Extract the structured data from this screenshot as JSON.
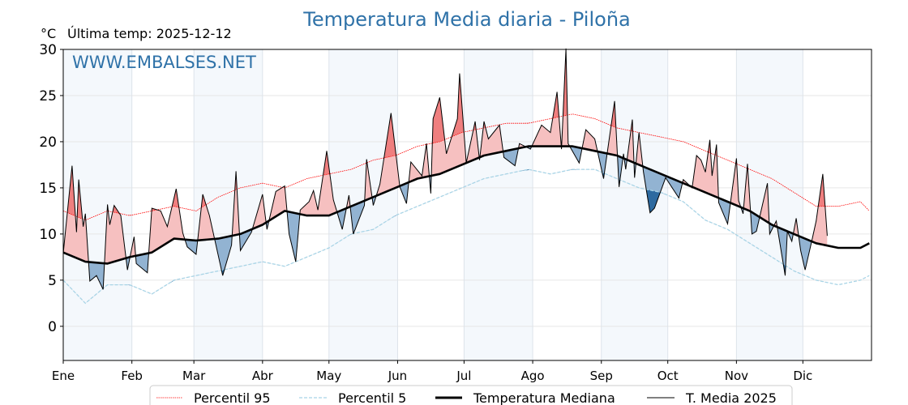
{
  "chart_data": {
    "type": "line",
    "title": "Temperatura Media diaria - Piloña",
    "ylabel": "°C",
    "subtitle": "Última temp: 2025-12-12",
    "watermark": "WWW.EMBALSES.NET",
    "ylim": [
      -3.7,
      30
    ],
    "xlim": [
      0,
      365
    ],
    "yticks": [
      0,
      5,
      10,
      15,
      20,
      25,
      30
    ],
    "month_labels": [
      "Ene",
      "Feb",
      "Mar",
      "Abr",
      "May",
      "Jun",
      "Jul",
      "Ago",
      "Sep",
      "Oct",
      "Nov",
      "Dic"
    ],
    "month_start_days": [
      0,
      31,
      59,
      90,
      120,
      151,
      181,
      212,
      243,
      273,
      304,
      334
    ],
    "grid": true,
    "legend_position": "bottom-center",
    "colors": {
      "title": "#2f72a8",
      "p95": "#ff0000",
      "p5": "#a8d4e6",
      "median": "#000000",
      "year": "#000000",
      "above_fill": "#f6c0c0",
      "above_p95_fill": "#ef7f7f",
      "below_fill": "#92b3d2",
      "below_p5_fill": "#2d6aa0",
      "month_shade": "#f4f8fc"
    },
    "series": [
      {
        "name": "Percentil 95",
        "style": "dotted",
        "x": [
          0,
          10,
          20,
          30,
          40,
          50,
          60,
          70,
          80,
          90,
          100,
          110,
          120,
          130,
          140,
          150,
          160,
          170,
          180,
          190,
          200,
          210,
          220,
          230,
          240,
          250,
          260,
          270,
          280,
          290,
          300,
          310,
          320,
          330,
          340,
          350,
          360,
          364
        ],
        "y": [
          12.5,
          11.5,
          12.5,
          12.0,
          12.5,
          13.0,
          12.5,
          14.0,
          15.0,
          15.5,
          15.0,
          16.0,
          16.5,
          17.0,
          18.0,
          18.5,
          19.5,
          20.0,
          21.0,
          21.5,
          22.0,
          22.0,
          22.5,
          23.0,
          22.5,
          21.5,
          21.0,
          20.5,
          20.0,
          19.0,
          18.0,
          17.0,
          16.0,
          14.5,
          13.0,
          13.0,
          13.5,
          12.5
        ]
      },
      {
        "name": "Percentil 5",
        "style": "dashed",
        "x": [
          0,
          10,
          20,
          30,
          40,
          50,
          60,
          70,
          80,
          90,
          100,
          110,
          120,
          130,
          140,
          150,
          160,
          170,
          180,
          190,
          200,
          210,
          220,
          230,
          240,
          250,
          260,
          270,
          280,
          290,
          300,
          310,
          320,
          330,
          340,
          350,
          360,
          364
        ],
        "y": [
          5.0,
          2.5,
          4.5,
          4.5,
          3.5,
          5.0,
          5.5,
          6.0,
          6.5,
          7.0,
          6.5,
          7.5,
          8.5,
          10.0,
          10.5,
          12.0,
          13.0,
          14.0,
          15.0,
          16.0,
          16.5,
          17.0,
          16.5,
          17.0,
          17.0,
          16.0,
          15.0,
          14.5,
          13.5,
          11.5,
          10.5,
          9.0,
          7.5,
          6.0,
          5.0,
          4.5,
          5.0,
          5.5
        ]
      },
      {
        "name": "Temperatura Mediana",
        "style": "thick",
        "x": [
          0,
          10,
          20,
          30,
          40,
          50,
          60,
          70,
          80,
          90,
          100,
          110,
          120,
          130,
          140,
          150,
          160,
          170,
          180,
          190,
          200,
          210,
          220,
          230,
          240,
          250,
          260,
          270,
          280,
          290,
          300,
          310,
          320,
          330,
          340,
          350,
          360,
          364
        ],
        "y": [
          8.0,
          7.0,
          6.8,
          7.5,
          8.0,
          9.5,
          9.3,
          9.5,
          10.0,
          11.0,
          12.5,
          12.0,
          12.0,
          13.0,
          14.0,
          15.0,
          16.0,
          16.5,
          17.5,
          18.5,
          19.0,
          19.5,
          19.5,
          19.5,
          19.0,
          18.5,
          17.5,
          16.5,
          15.5,
          14.5,
          13.5,
          12.5,
          11.0,
          10.0,
          9.0,
          8.5,
          8.5,
          9.0
        ]
      },
      {
        "name": "T. Media 2025",
        "style": "thin",
        "x": [
          0,
          4,
          6,
          7,
          9,
          10,
          12,
          15,
          18,
          20,
          21,
          23,
          26,
          29,
          32,
          33,
          38,
          40,
          44,
          47,
          51,
          54,
          56,
          60,
          63,
          66,
          72,
          76,
          78,
          80,
          85,
          90,
          92,
          96,
          100,
          102,
          105,
          107,
          111,
          113,
          115,
          119,
          122,
          126,
          129,
          131,
          136,
          137,
          140,
          143,
          148,
          152,
          155,
          157,
          162,
          164,
          166,
          167,
          170,
          173,
          178,
          179,
          182,
          186,
          188,
          190,
          192,
          197,
          199,
          204,
          206,
          211,
          216,
          220,
          223,
          225,
          227,
          228,
          233,
          236,
          240,
          244,
          249,
          251,
          253,
          254,
          257,
          258,
          260,
          262,
          265,
          267,
          272,
          278,
          280,
          284,
          286,
          288,
          290,
          292,
          293,
          295,
          296,
          300,
          304,
          305,
          307,
          309,
          311,
          313,
          318,
          319,
          322,
          326,
          327,
          329,
          331,
          333,
          335,
          338,
          340,
          343,
          345
        ],
        "y": [
          7.9,
          17.4,
          10.2,
          15.9,
          10.8,
          12.2,
          4.9,
          5.5,
          4.0,
          13.2,
          11.0,
          13.1,
          12.0,
          6.1,
          9.7,
          6.8,
          5.8,
          12.8,
          12.5,
          10.8,
          14.9,
          10.1,
          8.6,
          7.8,
          14.3,
          12.0,
          5.5,
          8.8,
          16.8,
          8.2,
          10.2,
          14.3,
          10.5,
          14.6,
          15.2,
          10.0,
          7.0,
          12.6,
          13.5,
          14.7,
          12.6,
          19.0,
          13.7,
          10.5,
          14.2,
          10.0,
          13.1,
          18.1,
          13.1,
          15.4,
          23.1,
          15.1,
          13.3,
          17.8,
          16.3,
          19.8,
          14.4,
          22.5,
          24.8,
          18.7,
          22.5,
          27.4,
          17.7,
          22.2,
          18.0,
          22.2,
          20.3,
          21.8,
          18.3,
          17.4,
          19.8,
          19.2,
          21.8,
          21.0,
          25.4,
          19.2,
          30.1,
          19.8,
          17.7,
          21.3,
          20.3,
          16.0,
          24.4,
          15.1,
          18.7,
          17.0,
          22.4,
          16.1,
          21.0,
          16.7,
          12.3,
          12.8,
          16.1,
          13.9,
          15.9,
          15.0,
          18.5,
          18.0,
          16.7,
          20.2,
          16.3,
          19.7,
          13.4,
          11.1,
          18.2,
          13.6,
          12.2,
          17.6,
          10.0,
          10.3,
          15.5,
          10.0,
          11.4,
          5.5,
          10.3,
          9.2,
          11.7,
          8.2,
          6.1,
          9.2,
          11.4,
          16.5,
          9.8
        ]
      }
    ]
  }
}
